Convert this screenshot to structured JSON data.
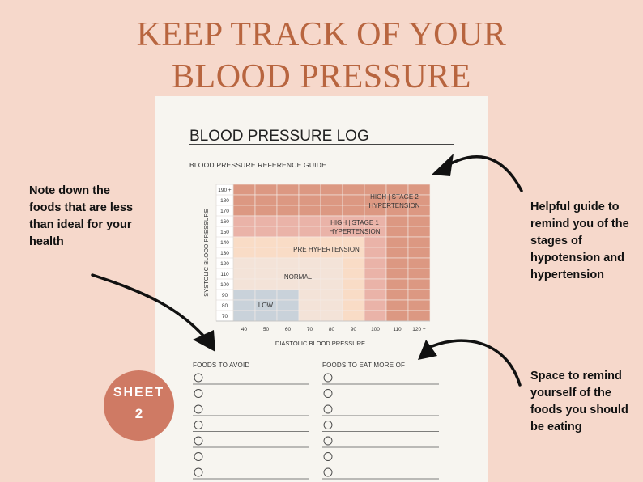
{
  "headline": {
    "line1": "KEEP TRACK OF YOUR",
    "line2": "BLOOD PRESSURE"
  },
  "sheet": {
    "title": "BLOOD PRESSURE LOG",
    "guide_title": "BLOOD PRESSURE REFERENCE GUIDE"
  },
  "notes": {
    "left": "Note down the foods that are less than ideal for your health",
    "right_top": "Helpful guide to remind you of the stages of hypotension and hypertension",
    "right_bottom": "Space to remind yourself of the foods you should be eating"
  },
  "badge": {
    "line1": "SHEET",
    "line2": "2"
  },
  "foods": {
    "avoid_title": "FOODS TO AVOID",
    "eat_more_title": "FOODS TO EAT MORE OF",
    "avoid_lines": 7,
    "eat_more_lines": 7
  },
  "chart_data": {
    "type": "heatmap",
    "title": "BLOOD PRESSURE REFERENCE GUIDE",
    "xlabel": "DIASTOLIC BLOOD PRESSURE",
    "ylabel": "SYSTOLIC BLOOD PRESSURE",
    "x_ticks": [
      "40",
      "50",
      "60",
      "70",
      "80",
      "90",
      "100",
      "110",
      "120 +"
    ],
    "y_ticks": [
      "190 +",
      "180",
      "170",
      "160",
      "150",
      "140",
      "130",
      "120",
      "110",
      "100",
      "90",
      "80",
      "70"
    ],
    "zones": [
      {
        "name": "LOW",
        "label": "LOW",
        "color": "#c9d2da",
        "systolic_max": "90",
        "diastolic_max": "60"
      },
      {
        "name": "NORMAL",
        "label": "NORMAL",
        "color": "#f3e3d8",
        "systolic_max": "120",
        "diastolic_max": "80"
      },
      {
        "name": "PRE HYPERTENSION",
        "label": "PRE HYPERTENSION",
        "color": "#f9dcc6",
        "systolic_max": "140",
        "diastolic_max": "90"
      },
      {
        "name": "HIGH STAGE 1",
        "label1": "HIGH | STAGE 1",
        "label2": "HYPERTENSION",
        "color": "#eab3a8",
        "systolic_max": "160",
        "diastolic_max": "100"
      },
      {
        "name": "HIGH STAGE 2",
        "label1": "HIGH | STAGE 2",
        "label2": "HYPERTENSION",
        "color": "#dc9882",
        "systolic_max": "190 +",
        "diastolic_max": "120 +"
      }
    ]
  }
}
